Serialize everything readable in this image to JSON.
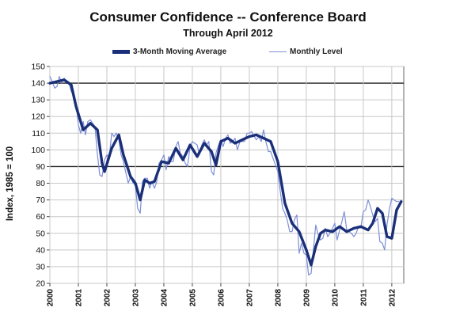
{
  "chart_data": {
    "type": "line",
    "title": "Consumer Confidence -- Conference Board",
    "subtitle": "Through April 2012",
    "xlabel": "",
    "ylabel": "Index, 1985 = 100",
    "ylim": [
      20,
      150
    ],
    "xlim": [
      2000.0,
      2012.42
    ],
    "y_ticks": [
      "20",
      "30",
      "40",
      "50",
      "60",
      "70",
      "80",
      "90",
      "100",
      "110",
      "120",
      "130",
      "140",
      "150"
    ],
    "x_ticks": [
      "2000",
      "2001",
      "2002",
      "2003",
      "2004",
      "2005",
      "2006",
      "2007",
      "2008",
      "2009",
      "2010",
      "2011",
      "2012"
    ],
    "reference_lines": [
      90,
      140
    ],
    "grid": true,
    "legend_position": "top",
    "series": [
      {
        "name": "3-Month Moving Average",
        "color": "#1a2f78",
        "x": [
          2000.0,
          2000.25,
          2000.5,
          2000.75,
          2000.92,
          2001.17,
          2001.42,
          2001.67,
          2001.83,
          2001.92,
          2002.17,
          2002.42,
          2002.58,
          2002.83,
          2003.0,
          2003.17,
          2003.33,
          2003.5,
          2003.67,
          2003.92,
          2004.17,
          2004.42,
          2004.67,
          2004.92,
          2005.17,
          2005.42,
          2005.67,
          2005.83,
          2006.0,
          2006.25,
          2006.5,
          2006.75,
          2007.0,
          2007.25,
          2007.5,
          2007.75,
          2008.0,
          2008.25,
          2008.5,
          2008.75,
          2009.0,
          2009.17,
          2009.33,
          2009.5,
          2009.67,
          2009.92,
          2010.17,
          2010.42,
          2010.67,
          2010.92,
          2011.17,
          2011.33,
          2011.5,
          2011.67,
          2011.83,
          2012.0,
          2012.17,
          2012.33
        ],
        "values": [
          140,
          141,
          142,
          139,
          126,
          112,
          116,
          112,
          92,
          87,
          101,
          109,
          97,
          84,
          80,
          70,
          82,
          80,
          81,
          93,
          92,
          101,
          94,
          103,
          96,
          104,
          99,
          91,
          105,
          107,
          104,
          106,
          108,
          109,
          107,
          105,
          93,
          68,
          56,
          51,
          40,
          31,
          42,
          50,
          52,
          51,
          54,
          51,
          53,
          54,
          52,
          56,
          65,
          62,
          48,
          47,
          64,
          69
        ]
      },
      {
        "name": "Monthly Level",
        "color": "#7d8ed8",
        "x": [
          2000.0,
          2000.08,
          2000.17,
          2000.25,
          2000.33,
          2000.42,
          2000.5,
          2000.58,
          2000.67,
          2000.75,
          2000.83,
          2000.92,
          2001.0,
          2001.08,
          2001.17,
          2001.25,
          2001.33,
          2001.42,
          2001.5,
          2001.58,
          2001.67,
          2001.75,
          2001.83,
          2001.92,
          2002.0,
          2002.08,
          2002.17,
          2002.25,
          2002.33,
          2002.42,
          2002.5,
          2002.58,
          2002.67,
          2002.75,
          2002.83,
          2002.92,
          2003.0,
          2003.08,
          2003.17,
          2003.25,
          2003.33,
          2003.42,
          2003.5,
          2003.58,
          2003.67,
          2003.75,
          2003.83,
          2003.92,
          2004.0,
          2004.08,
          2004.17,
          2004.25,
          2004.33,
          2004.42,
          2004.5,
          2004.58,
          2004.67,
          2004.75,
          2004.83,
          2004.92,
          2005.0,
          2005.08,
          2005.17,
          2005.25,
          2005.33,
          2005.42,
          2005.5,
          2005.58,
          2005.67,
          2005.75,
          2005.83,
          2005.92,
          2006.0,
          2006.08,
          2006.17,
          2006.25,
          2006.33,
          2006.42,
          2006.5,
          2006.58,
          2006.67,
          2006.75,
          2006.83,
          2006.92,
          2007.0,
          2007.08,
          2007.17,
          2007.25,
          2007.33,
          2007.42,
          2007.5,
          2007.58,
          2007.67,
          2007.75,
          2007.83,
          2007.92,
          2008.0,
          2008.08,
          2008.17,
          2008.25,
          2008.33,
          2008.42,
          2008.5,
          2008.58,
          2008.67,
          2008.75,
          2008.83,
          2008.92,
          2009.0,
          2009.08,
          2009.17,
          2009.25,
          2009.33,
          2009.42,
          2009.5,
          2009.58,
          2009.67,
          2009.75,
          2009.83,
          2009.92,
          2010.0,
          2010.08,
          2010.17,
          2010.25,
          2010.33,
          2010.42,
          2010.5,
          2010.58,
          2010.67,
          2010.75,
          2010.83,
          2010.92,
          2011.0,
          2011.08,
          2011.17,
          2011.25,
          2011.33,
          2011.42,
          2011.5,
          2011.58,
          2011.67,
          2011.75,
          2011.83,
          2011.92,
          2012.0,
          2012.08,
          2012.17,
          2012.25
        ],
        "values": [
          144,
          141,
          137,
          138,
          144,
          140,
          143,
          141,
          140,
          135,
          133,
          128,
          115,
          110,
          117,
          109,
          117,
          118,
          116,
          114,
          97,
          85,
          84,
          94,
          97,
          95,
          110,
          108,
          110,
          106,
          97,
          93,
          86,
          80,
          84,
          80,
          79,
          65,
          62,
          81,
          83,
          83,
          77,
          81,
          77,
          81,
          92,
          94,
          97,
          88,
          96,
          93,
          93,
          102,
          105,
          98,
          96,
          92,
          90,
          102,
          105,
          104,
          103,
          97,
          103,
          106,
          103,
          105,
          87,
          85,
          98,
          103,
          106,
          102,
          107,
          109,
          104,
          105,
          107,
          100,
          105,
          105,
          105,
          110,
          110,
          111,
          108,
          106,
          108,
          105,
          112,
          105,
          99,
          99,
          95,
          91,
          87,
          76,
          65,
          62,
          58,
          51,
          51,
          58,
          61,
          38,
          44,
          38,
          37,
          25,
          26,
          40,
          55,
          49,
          46,
          47,
          53,
          48,
          50,
          53,
          56,
          46,
          52,
          57,
          63,
          52,
          51,
          50,
          48,
          50,
          54,
          54,
          63,
          64,
          70,
          66,
          61,
          57,
          59,
          45,
          44,
          40,
          55,
          65,
          71,
          70,
          69,
          69
        ]
      }
    ]
  }
}
